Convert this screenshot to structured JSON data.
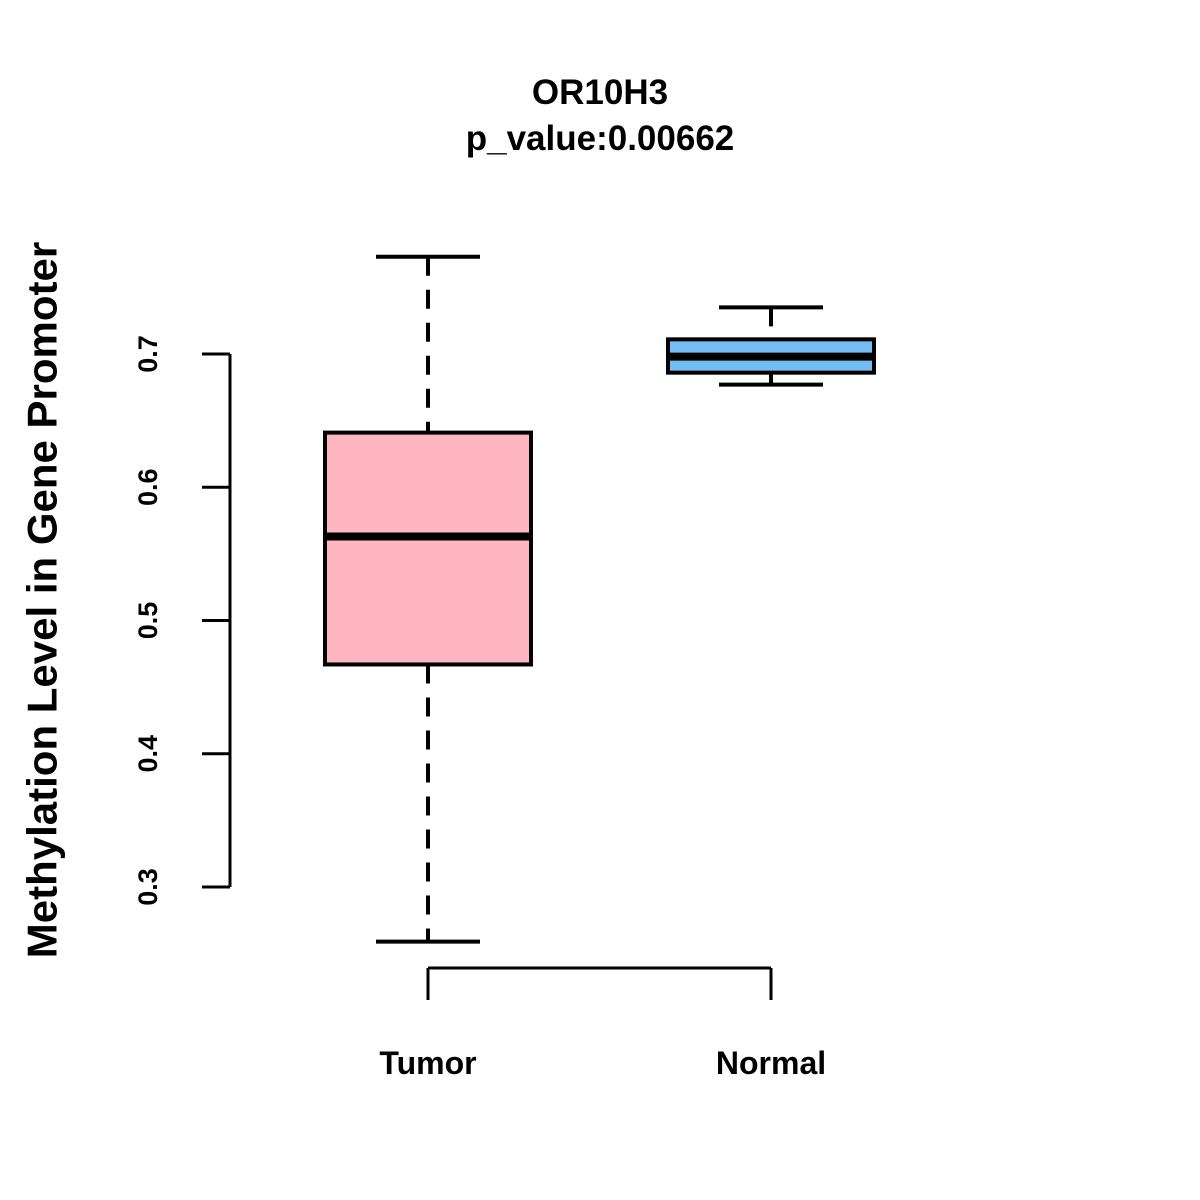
{
  "title": {
    "line1": "OR10H3",
    "line2": "p_value:0.00662"
  },
  "y_axis": {
    "label": "Methylation Level in Gene Promoter",
    "tick_labels": [
      "0.3",
      "0.4",
      "0.5",
      "0.6",
      "0.7"
    ],
    "min": 0.3,
    "max": 0.7
  },
  "x_axis": {
    "groups": [
      "Tumor",
      "Normal"
    ]
  },
  "chart_data": {
    "type": "boxplot",
    "title": "OR10H3",
    "subtitle": "p_value:0.00662",
    "p_value": 0.00662,
    "ylabel": "Methylation Level in Gene Promoter",
    "y_ticks": [
      0.3,
      0.4,
      0.5,
      0.6,
      0.7
    ],
    "ylim": [
      0.26,
      0.78
    ],
    "grid": false,
    "categories": [
      "Tumor",
      "Normal"
    ],
    "series": [
      {
        "name": "Tumor",
        "fill_color": "#FFB6C1",
        "whisker_low": 0.259,
        "q1": 0.467,
        "median": 0.563,
        "q3": 0.641,
        "whisker_high": 0.773
      },
      {
        "name": "Normal",
        "fill_color": "#74BDF2",
        "whisker_low": 0.677,
        "q1": 0.686,
        "median": 0.698,
        "q3": 0.711,
        "whisker_high": 0.735
      }
    ],
    "stroke_color": "#000000",
    "background_color": "#FFFFFF"
  }
}
